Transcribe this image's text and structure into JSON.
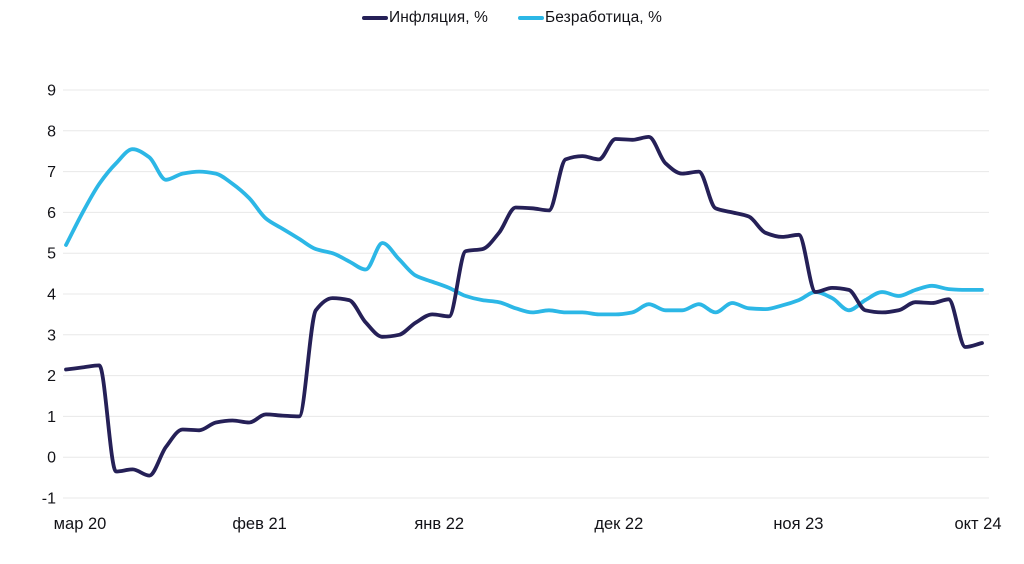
{
  "chart_data": {
    "type": "line",
    "description": "Two smoothed monthly line series, мар 2020 — окт 2024",
    "legend_position": "top-center",
    "grid": "horizontal",
    "ylim": [
      -1,
      9
    ],
    "y_ticks": [
      9,
      8,
      7,
      6,
      5,
      4,
      3,
      2,
      1,
      0,
      -1
    ],
    "x_tick_labels": [
      "мар 20",
      "фев 21",
      "янв 22",
      "дек 22",
      "ноя 23",
      "окт 24"
    ],
    "x_tick_point_indices": [
      0,
      11,
      22,
      33,
      44,
      55
    ],
    "series": [
      {
        "name": "Инфляция, %",
        "color": "#252057",
        "values": [
          2.15,
          2.2,
          2.25,
          -0.35,
          -0.3,
          -0.45,
          0.25,
          0.68,
          0.66,
          0.85,
          0.9,
          0.85,
          1.05,
          1.02,
          1.0,
          3.6,
          3.9,
          3.85,
          3.3,
          2.95,
          3.0,
          3.3,
          3.5,
          3.45,
          5.05,
          5.1,
          5.5,
          6.12,
          6.1,
          6.05,
          7.3,
          7.38,
          7.3,
          7.8,
          7.78,
          7.85,
          7.2,
          6.95,
          7.0,
          6.1,
          6.0,
          5.9,
          5.5,
          5.4,
          5.45,
          4.05,
          4.15,
          4.1,
          3.6,
          3.55,
          3.6,
          3.8,
          3.78,
          3.87,
          2.7,
          2.8
        ]
      },
      {
        "name": "Безработица, %",
        "color": "#2cb7e6",
        "values": [
          5.2,
          6.0,
          6.7,
          7.2,
          7.55,
          7.35,
          6.8,
          6.95,
          7.0,
          6.95,
          6.7,
          6.35,
          5.85,
          5.6,
          5.35,
          5.1,
          5.0,
          4.8,
          4.6,
          5.25,
          4.85,
          4.45,
          4.3,
          4.15,
          3.95,
          3.85,
          3.8,
          3.65,
          3.55,
          3.6,
          3.55,
          3.55,
          3.5,
          3.5,
          3.55,
          3.75,
          3.6,
          3.6,
          3.75,
          3.55,
          3.78,
          3.65,
          3.63,
          3.72,
          3.85,
          4.05,
          3.9,
          3.6,
          3.85,
          4.05,
          3.95,
          4.1,
          4.2,
          4.12,
          4.1,
          4.1
        ]
      }
    ],
    "styles": {
      "grid_color": "#e8e8e8",
      "axis_text_color": "#121217",
      "line_width": 3.8
    }
  }
}
